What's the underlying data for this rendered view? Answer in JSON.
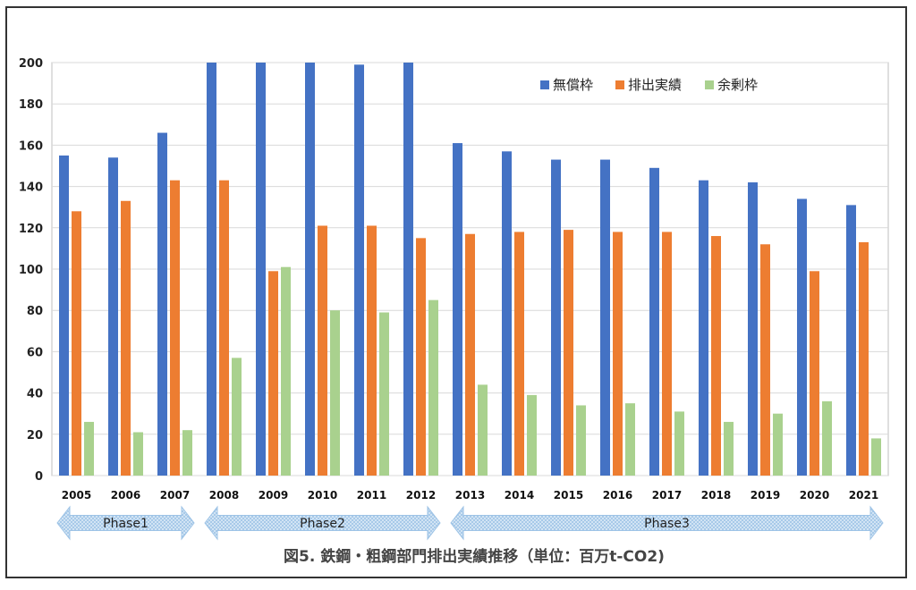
{
  "chart_data": {
    "type": "bar",
    "title": "",
    "caption": "図5. 鉄鋼・粗鋼部門排出実績推移（単位：百万t-CO2)",
    "xlabel": "",
    "ylabel": "",
    "ylim": [
      0,
      200
    ],
    "yticks": [
      0,
      20,
      40,
      60,
      80,
      100,
      120,
      140,
      160,
      180,
      200
    ],
    "grid": true,
    "legend_position": "top-right",
    "categories": [
      "2005",
      "2006",
      "2007",
      "2008",
      "2009",
      "2010",
      "2011",
      "2012",
      "2013",
      "2014",
      "2015",
      "2016",
      "2017",
      "2018",
      "2019",
      "2020",
      "2021"
    ],
    "series": [
      {
        "name": "無償枠",
        "color": "#4472C4",
        "values": [
          155,
          154,
          166,
          200,
          200,
          200,
          199,
          200,
          161,
          157,
          153,
          153,
          149,
          143,
          142,
          134,
          131
        ]
      },
      {
        "name": "排出実績",
        "color": "#ED7D31",
        "values": [
          128,
          133,
          143,
          143,
          99,
          121,
          121,
          115,
          117,
          118,
          119,
          118,
          118,
          116,
          112,
          99,
          113
        ]
      },
      {
        "name": "余剰枠",
        "color": "#A9D18E",
        "values": [
          26,
          21,
          22,
          57,
          101,
          80,
          79,
          85,
          44,
          39,
          34,
          35,
          31,
          26,
          30,
          36,
          18
        ]
      }
    ],
    "phases": [
      {
        "label": "Phase1",
        "start": "2005",
        "end": "2007"
      },
      {
        "label": "Phase2",
        "start": "2008",
        "end": "2012"
      },
      {
        "label": "Phase3",
        "start": "2013",
        "end": "2021"
      }
    ],
    "phase_color": "#BDD7EE"
  }
}
